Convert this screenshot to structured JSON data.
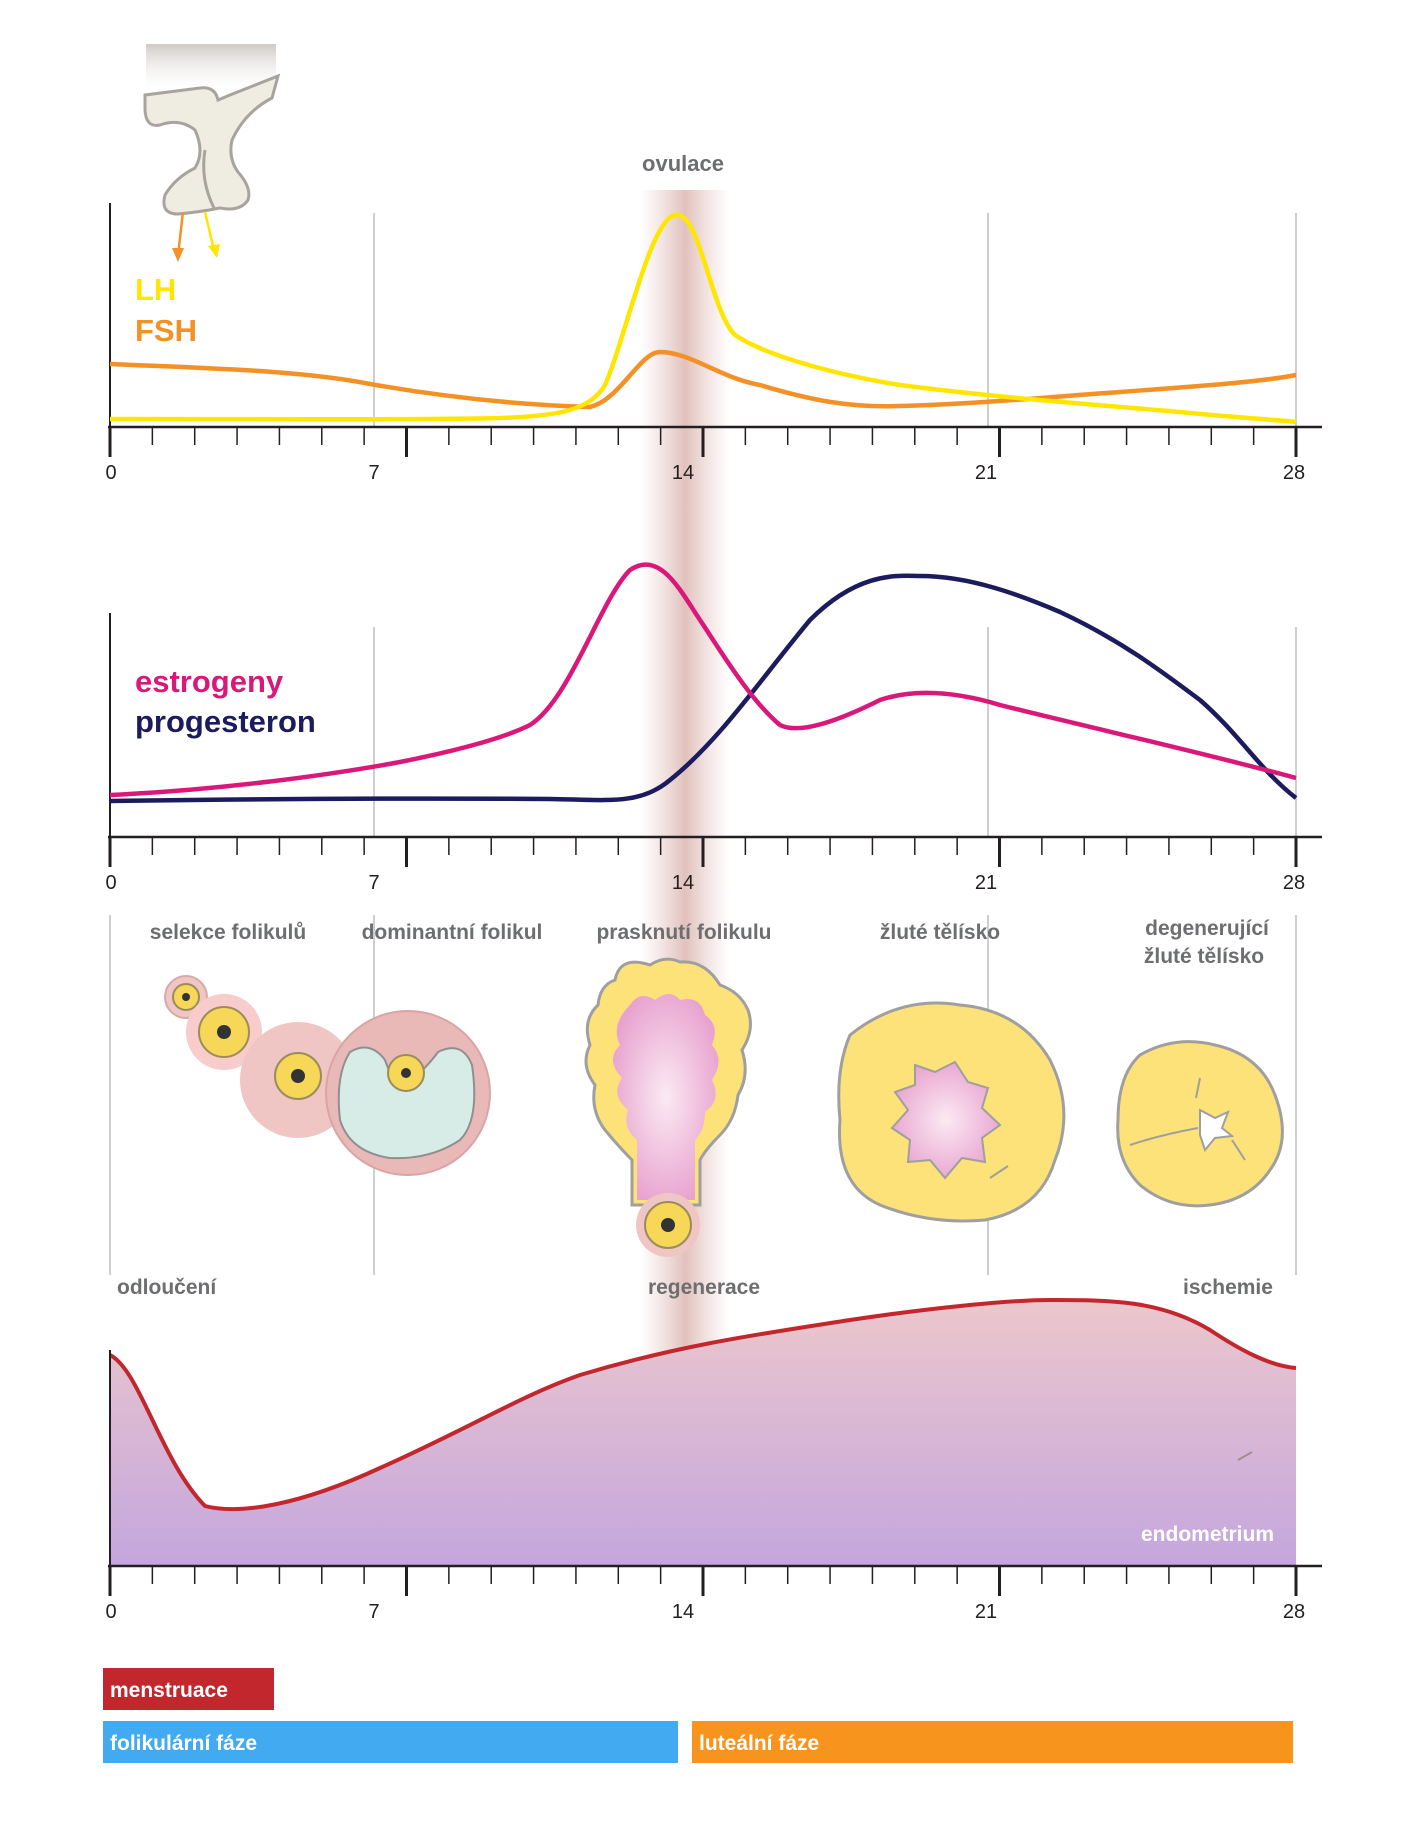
{
  "ovulation_label": "ovulace",
  "panel_gonadotropins": {
    "legend": [
      {
        "label": "LH",
        "color": "#ffe600"
      },
      {
        "label": "FSH",
        "color": "#f39026"
      }
    ],
    "x_ticks": [
      "0",
      "7",
      "14",
      "21",
      "28"
    ]
  },
  "panel_steroids": {
    "legend": [
      {
        "label": "estrogeny",
        "color": "#d9187a"
      },
      {
        "label": "progesteron",
        "color": "#1b1b5e"
      }
    ],
    "x_ticks": [
      "0",
      "7",
      "14",
      "21",
      "28"
    ]
  },
  "ovary_stages": [
    {
      "label": "selekce folikulů"
    },
    {
      "label": "dominantní folikul"
    },
    {
      "label": "prasknutí folikulu"
    },
    {
      "label": "žluté tělísko"
    },
    {
      "label": "degenerující",
      "label2": "žluté tělísko"
    }
  ],
  "endometrium_panel": {
    "top_labels": [
      "odloučení",
      "regenerace",
      "ischemie"
    ],
    "area_label": "endometrium",
    "x_ticks": [
      "0",
      "7",
      "14",
      "21",
      "28"
    ]
  },
  "phases": [
    {
      "label": "menstruace",
      "color": "#c1272d"
    },
    {
      "label": "folikulární fáze",
      "color": "#41aaf0"
    },
    {
      "label": "luteální fáze",
      "color": "#f7941d"
    }
  ]
}
